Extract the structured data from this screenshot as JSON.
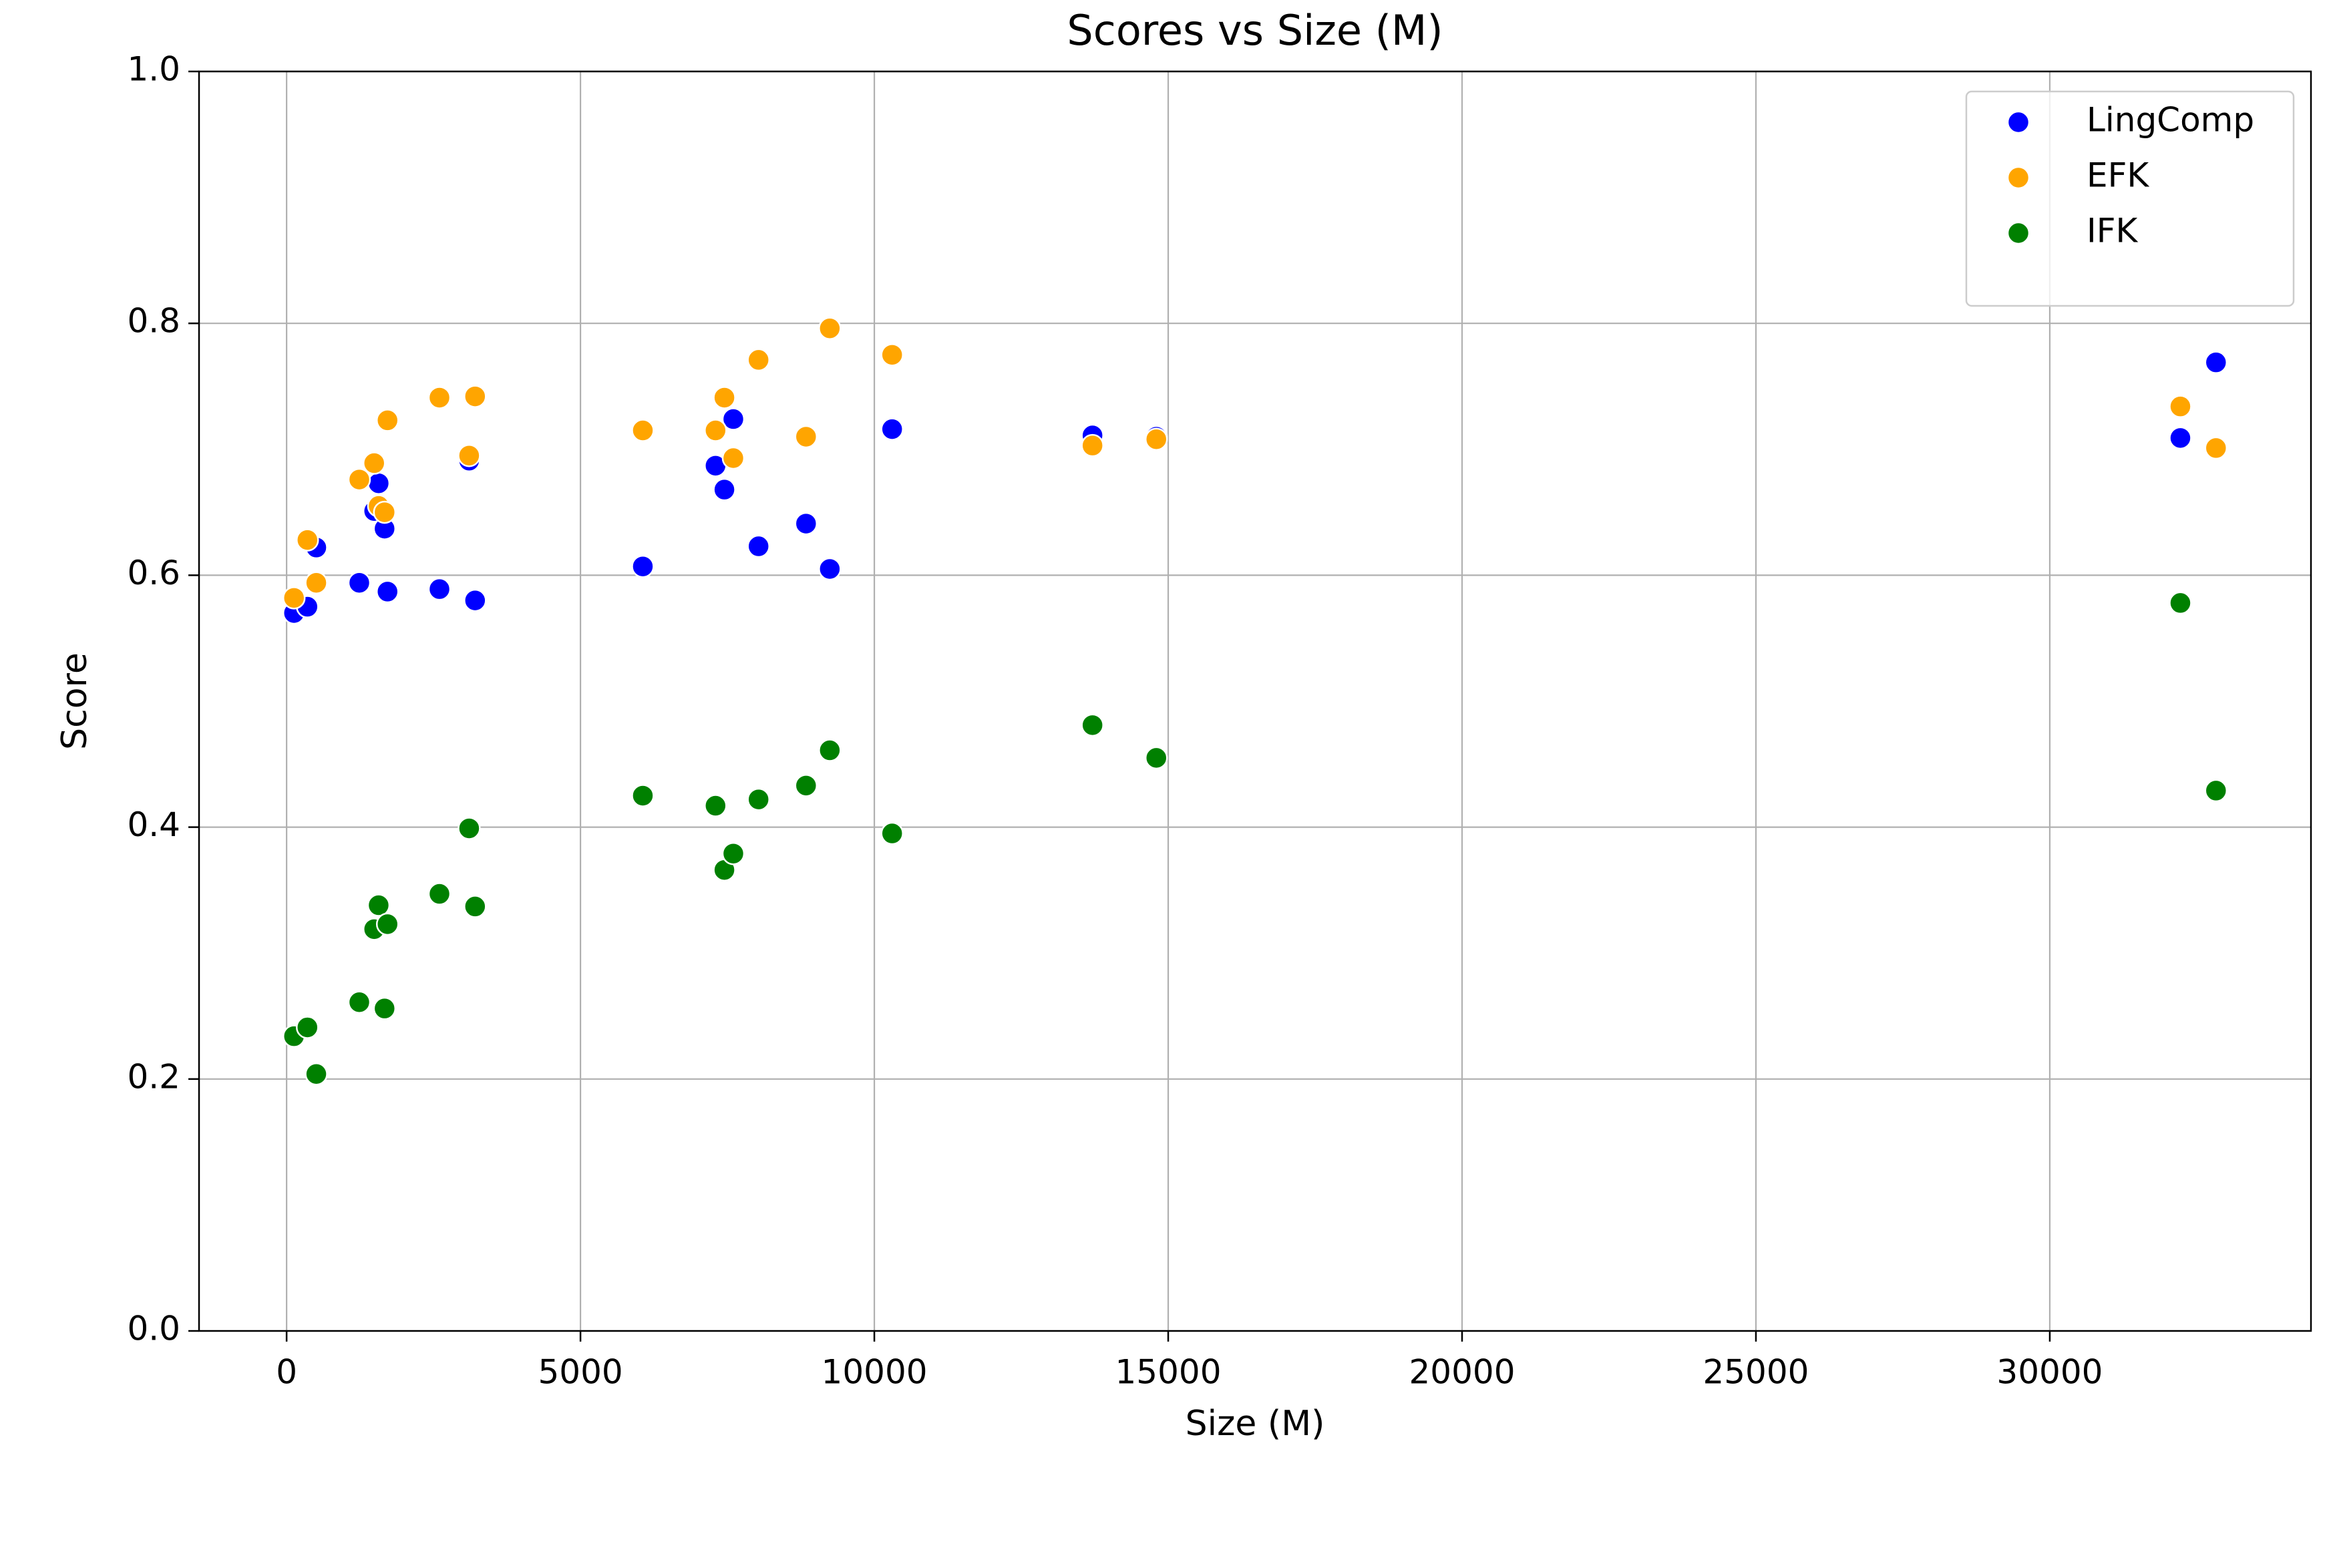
{
  "chart_data": {
    "type": "scatter",
    "title": "Scores vs Size (M)",
    "x_label": "Size (M)",
    "y_label": "Score",
    "x": [
      126,
      354,
      505,
      1237,
      1490,
      1566,
      1667,
      1717,
      2601,
      3106,
      3207,
      6061,
      7298,
      7449,
      7601,
      8030,
      8838,
      9242,
      10303,
      13712,
      14798,
      32222,
      32828
    ],
    "series": [
      {
        "name": "LingComp",
        "color": "#0000ff",
        "values": [
          0.57,
          0.575,
          0.622,
          0.594,
          0.651,
          0.673,
          0.637,
          0.587,
          0.589,
          0.691,
          0.58,
          0.607,
          0.687,
          0.668,
          0.724,
          0.623,
          0.641,
          0.605,
          0.716,
          0.711,
          0.71,
          0.709,
          0.769
        ]
      },
      {
        "name": "EFK",
        "color": "#ffa500",
        "values": [
          0.582,
          0.628,
          0.594,
          0.676,
          0.689,
          0.655,
          0.65,
          0.723,
          0.741,
          0.695,
          0.742,
          0.715,
          0.715,
          0.741,
          0.693,
          0.771,
          0.71,
          0.796,
          0.775,
          0.703,
          0.708,
          0.734,
          0.701
        ]
      },
      {
        "name": "IFK",
        "color": "#008000",
        "values": [
          0.234,
          0.241,
          0.204,
          0.261,
          0.319,
          0.338,
          0.256,
          0.323,
          0.347,
          0.399,
          0.337,
          0.425,
          0.417,
          0.366,
          0.379,
          0.422,
          0.433,
          0.461,
          0.395,
          0.481,
          0.455,
          0.578,
          0.429
        ]
      }
    ],
    "xlim": [
      -1490,
      34444
    ],
    "xticks": [
      0,
      5000,
      10000,
      15000,
      20000,
      25000,
      30000
    ],
    "ylim": [
      0,
      1
    ],
    "yticks": [
      {
        "value": 0,
        "label": "0.0"
      },
      0.2,
      0.4,
      0.6,
      0.8,
      {
        "value": 1,
        "label": "1.0"
      }
    ],
    "grid": true,
    "legend": "upper right"
  }
}
